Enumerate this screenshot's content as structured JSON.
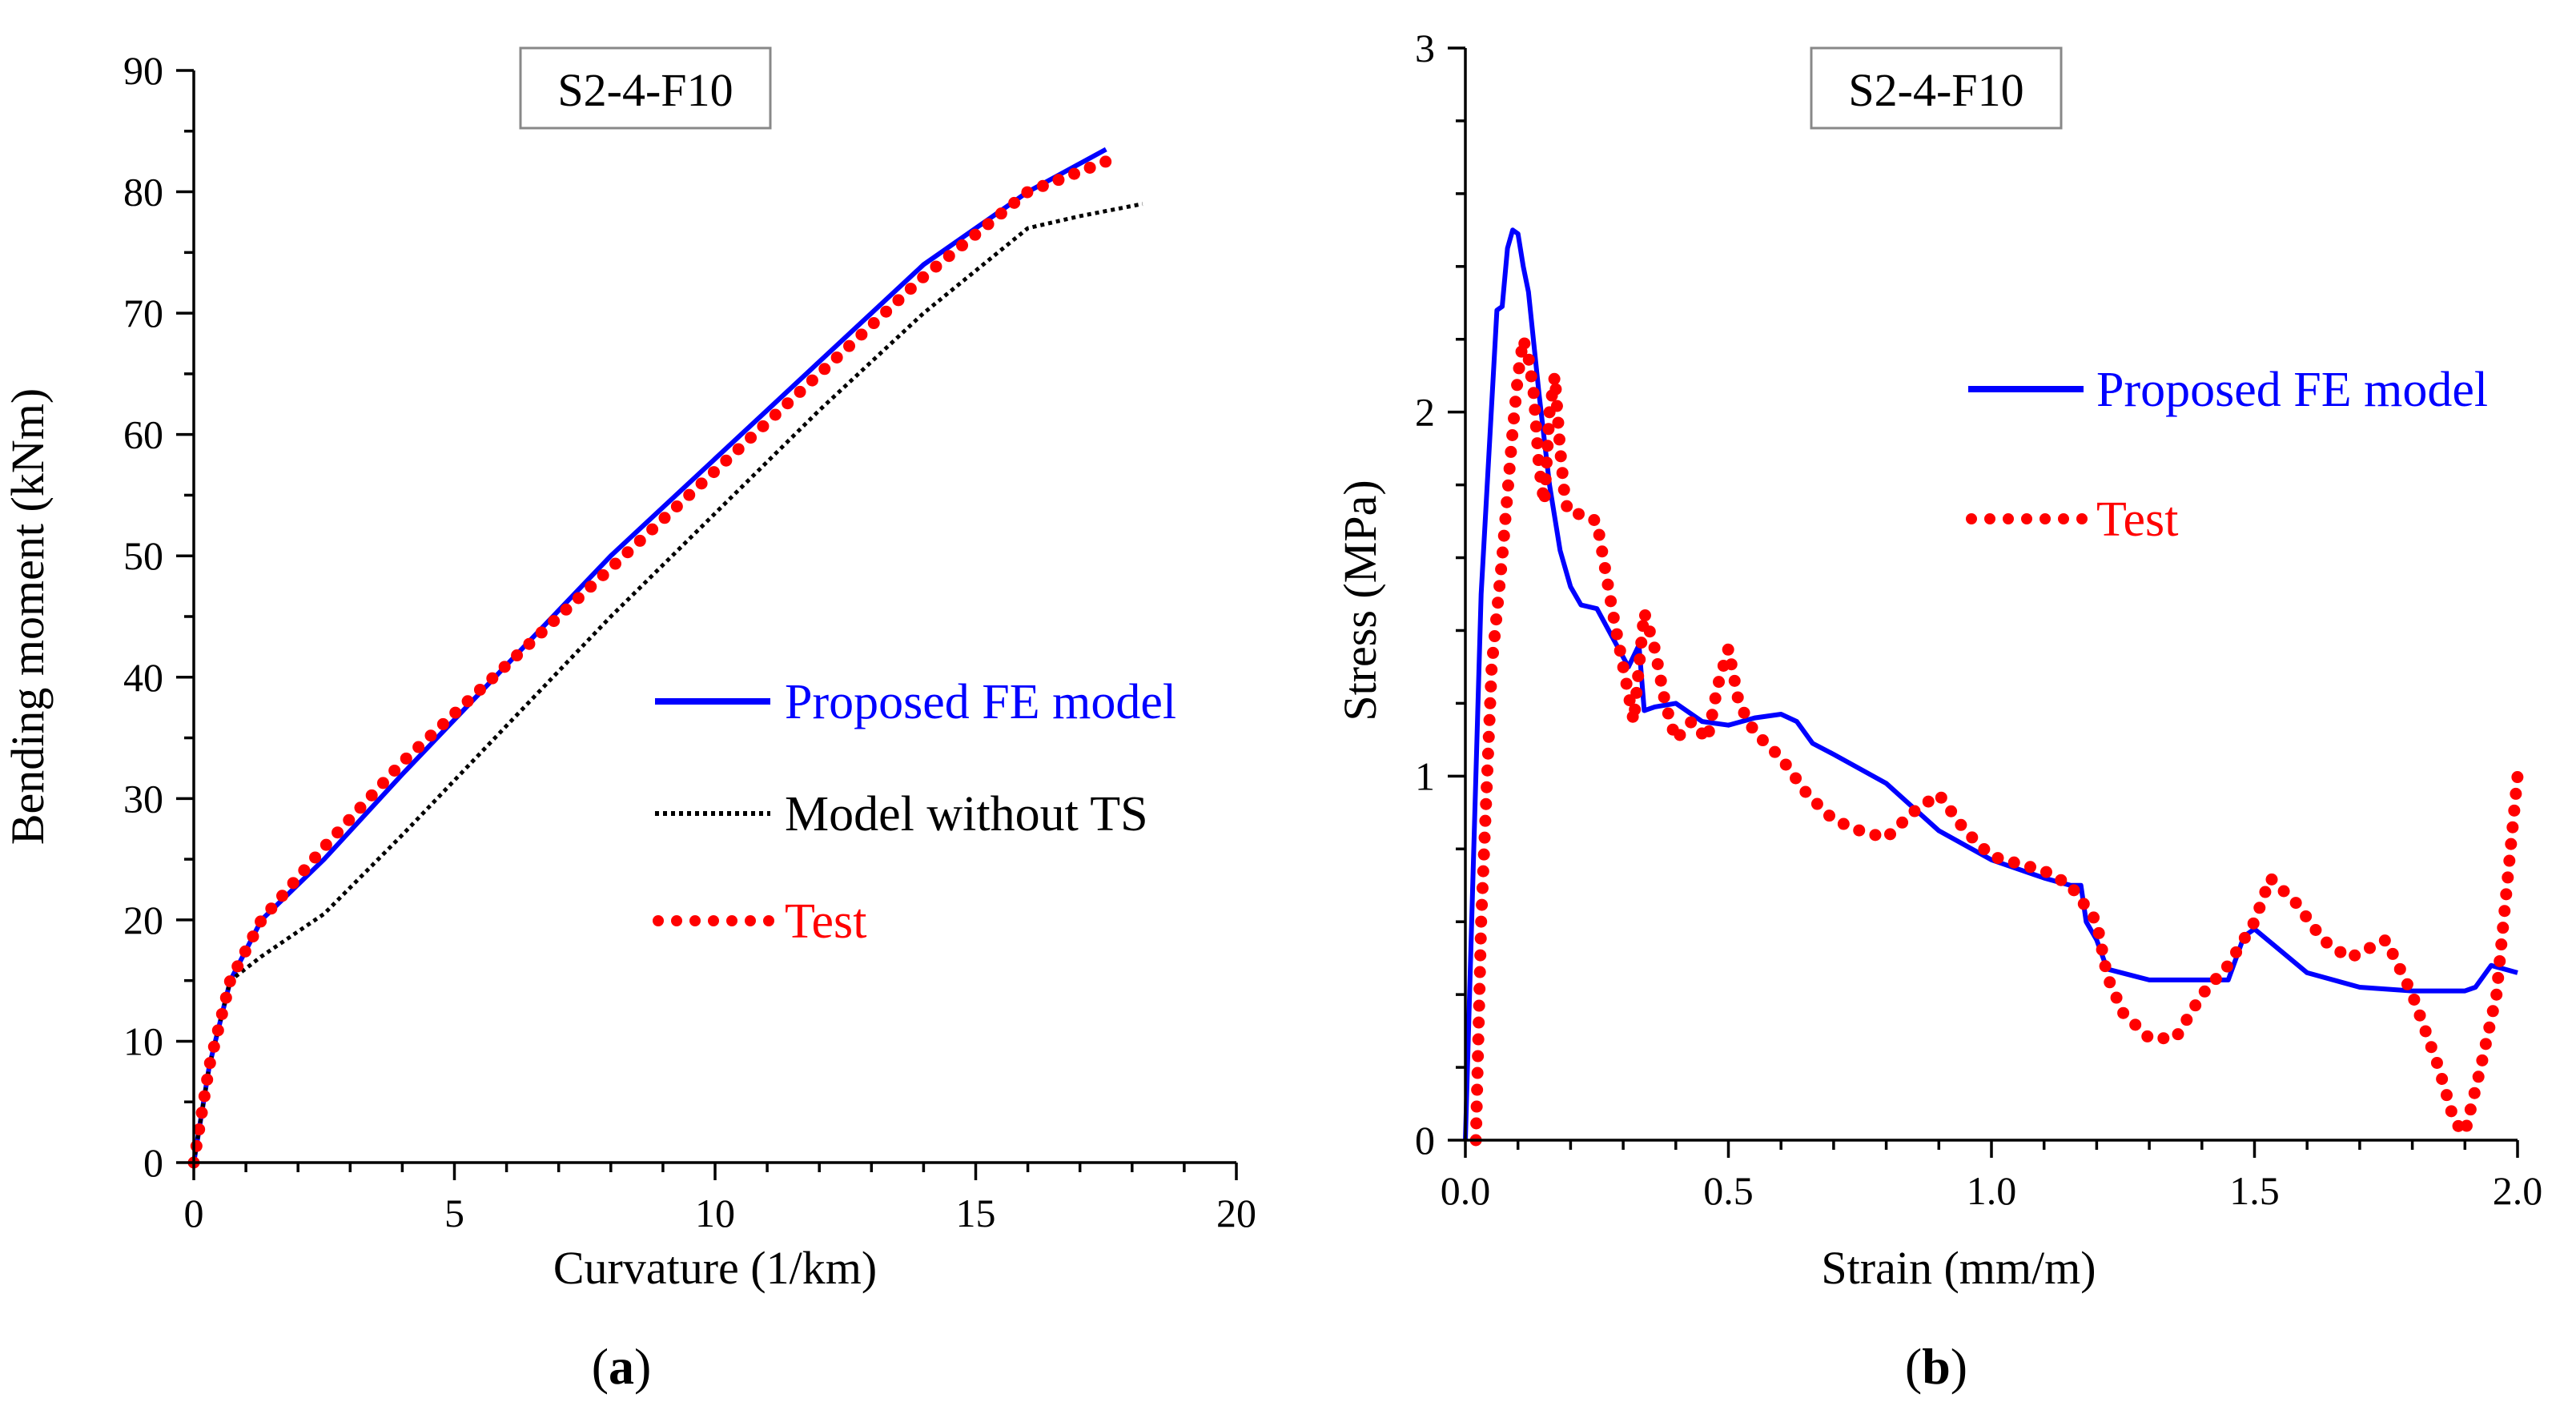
{
  "colors": {
    "model": "#0000FF",
    "test": "#FF0000",
    "without_ts": "#000000"
  },
  "chart_data": [
    {
      "type": "line",
      "panel": "a",
      "caption": {
        "open": "(",
        "letter": "a",
        "close": ")"
      },
      "title": "S2-4-F10",
      "xlabel": "Curvature (1/km)",
      "ylabel": "Bending moment (kNm)",
      "xlim": [
        0,
        20
      ],
      "ylim": [
        0,
        90
      ],
      "xticks": [
        0,
        5,
        10,
        15,
        20
      ],
      "xtick_labels": [
        "0",
        "5",
        "10",
        "15",
        "20"
      ],
      "yticks": [
        0,
        10,
        20,
        30,
        40,
        50,
        60,
        70,
        80,
        90
      ],
      "ytick_labels": [
        "0",
        "10",
        "20",
        "30",
        "40",
        "50",
        "60",
        "70",
        "80",
        "90"
      ],
      "legend_position": "center-right",
      "series": [
        {
          "name": "Proposed FE model",
          "style": "solid",
          "color": "#0000FF",
          "x": [
            0,
            0.3,
            0.7,
            1.3,
            2.5,
            4,
            6,
            8,
            10,
            12,
            14,
            16,
            17.5
          ],
          "y": [
            0,
            8,
            15,
            20,
            25,
            32,
            41,
            50,
            58,
            66,
            74,
            80,
            83.5
          ]
        },
        {
          "name": "Model without TS",
          "style": "dotted",
          "color": "#000000",
          "x": [
            0,
            0.3,
            0.7,
            1.3,
            2.5,
            4,
            6,
            8,
            10,
            12,
            14,
            16,
            17,
            18.2
          ],
          "y": [
            0,
            8,
            15,
            17,
            20.5,
            27,
            36,
            45,
            53.5,
            62,
            70,
            77,
            78,
            79
          ]
        },
        {
          "name": "Test",
          "style": "dots",
          "color": "#FF0000",
          "x": [
            0,
            0.3,
            0.7,
            1.3,
            2.5,
            4,
            6,
            8,
            10,
            12,
            14,
            16,
            17.5
          ],
          "y": [
            0,
            8,
            15,
            20,
            26,
            33,
            41,
            49,
            57,
            65,
            73,
            80,
            82.5
          ]
        }
      ]
    },
    {
      "type": "line",
      "panel": "b",
      "caption": {
        "open": "(",
        "letter": "b",
        "close": ")"
      },
      "title": "S2-4-F10",
      "xlabel": "Strain (mm/m)",
      "ylabel": "Stress (MPa)",
      "xlim": [
        0,
        2
      ],
      "ylim": [
        0,
        3
      ],
      "xticks": [
        0,
        0.5,
        1.0,
        1.5,
        2.0
      ],
      "xtick_labels": [
        "0.0",
        "0.5",
        "1.0",
        "1.5",
        "2.0"
      ],
      "yticks": [
        0,
        1,
        2,
        3
      ],
      "ytick_labels": [
        "0",
        "1",
        "2",
        "3"
      ],
      "legend_position": "top-right",
      "series": [
        {
          "name": "Proposed FE model",
          "style": "solid",
          "color": "#0000FF",
          "x": [
            0,
            0.03,
            0.06,
            0.07,
            0.08,
            0.09,
            0.1,
            0.11,
            0.12,
            0.14,
            0.16,
            0.18,
            0.2,
            0.22,
            0.25,
            0.28,
            0.31,
            0.33,
            0.34,
            0.36,
            0.4,
            0.45,
            0.5,
            0.55,
            0.6,
            0.63,
            0.66,
            0.7,
            0.8,
            0.9,
            1.0,
            1.1,
            1.15,
            1.17,
            1.18,
            1.2,
            1.22,
            1.3,
            1.4,
            1.45,
            1.48,
            1.5,
            1.55,
            1.6,
            1.7,
            1.8,
            1.9,
            1.92,
            1.95,
            2.0
          ],
          "y": [
            0,
            1.5,
            2.28,
            2.29,
            2.45,
            2.5,
            2.49,
            2.4,
            2.33,
            2.05,
            1.8,
            1.62,
            1.52,
            1.47,
            1.46,
            1.38,
            1.3,
            1.36,
            1.18,
            1.19,
            1.2,
            1.15,
            1.14,
            1.16,
            1.17,
            1.15,
            1.09,
            1.06,
            0.98,
            0.85,
            0.77,
            0.72,
            0.7,
            0.7,
            0.6,
            0.55,
            0.47,
            0.44,
            0.44,
            0.44,
            0.56,
            0.58,
            0.52,
            0.46,
            0.42,
            0.41,
            0.41,
            0.42,
            0.48,
            0.46
          ]
        },
        {
          "name": "Test",
          "style": "dots",
          "color": "#FF0000",
          "x": [
            0.02,
            0.03,
            0.05,
            0.07,
            0.09,
            0.1,
            0.11,
            0.12,
            0.13,
            0.14,
            0.15,
            0.16,
            0.17,
            0.18,
            0.19,
            0.2,
            0.22,
            0.25,
            0.28,
            0.3,
            0.32,
            0.34,
            0.36,
            0.38,
            0.4,
            0.43,
            0.46,
            0.48,
            0.5,
            0.52,
            0.55,
            0.6,
            0.65,
            0.7,
            0.75,
            0.8,
            0.85,
            0.9,
            0.95,
            1.0,
            1.05,
            1.1,
            1.15,
            1.2,
            1.22,
            1.25,
            1.3,
            1.35,
            1.4,
            1.45,
            1.5,
            1.53,
            1.58,
            1.63,
            1.68,
            1.75,
            1.8,
            1.85,
            1.88,
            1.9,
            1.93,
            1.96,
            1.98,
            2.0
          ],
          "y": [
            0,
            0.6,
            1.3,
            1.6,
            1.95,
            2.1,
            2.2,
            2.15,
            2.05,
            1.85,
            1.75,
            2.0,
            2.1,
            1.9,
            1.75,
            1.72,
            1.72,
            1.7,
            1.45,
            1.3,
            1.15,
            1.45,
            1.35,
            1.2,
            1.1,
            1.15,
            1.1,
            1.25,
            1.35,
            1.2,
            1.12,
            1.05,
            0.95,
            0.88,
            0.85,
            0.83,
            0.9,
            0.95,
            0.85,
            0.78,
            0.76,
            0.74,
            0.7,
            0.6,
            0.45,
            0.35,
            0.28,
            0.28,
            0.4,
            0.48,
            0.6,
            0.72,
            0.65,
            0.55,
            0.5,
            0.55,
            0.4,
            0.2,
            0.05,
            0.02,
            0.2,
            0.4,
            0.7,
            1.0
          ]
        }
      ]
    }
  ]
}
